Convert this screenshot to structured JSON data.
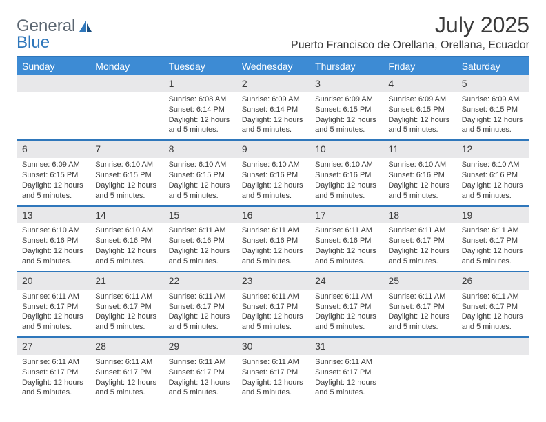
{
  "brand": {
    "part1": "General",
    "part2": "Blue"
  },
  "title": "July 2025",
  "location": "Puerto Francisco de Orellana, Orellana, Ecuador",
  "colors": {
    "header_bg": "#3d8bd4",
    "header_text": "#ffffff",
    "divider": "#2f77bb",
    "daynum_bg": "#e8e8ea",
    "text": "#3a3a3a",
    "logo_gray": "#5a6570",
    "logo_blue": "#2f77bb",
    "page_bg": "#ffffff"
  },
  "typography": {
    "title_fontsize": 32,
    "location_fontsize": 16,
    "header_fontsize": 14,
    "daynum_fontsize": 14,
    "body_fontsize": 11
  },
  "days": [
    "Sunday",
    "Monday",
    "Tuesday",
    "Wednesday",
    "Thursday",
    "Friday",
    "Saturday"
  ],
  "weeks": [
    [
      null,
      null,
      {
        "n": "1",
        "sr": "Sunrise: 6:08 AM",
        "ss": "Sunset: 6:14 PM",
        "dl": "Daylight: 12 hours and 5 minutes."
      },
      {
        "n": "2",
        "sr": "Sunrise: 6:09 AM",
        "ss": "Sunset: 6:14 PM",
        "dl": "Daylight: 12 hours and 5 minutes."
      },
      {
        "n": "3",
        "sr": "Sunrise: 6:09 AM",
        "ss": "Sunset: 6:15 PM",
        "dl": "Daylight: 12 hours and 5 minutes."
      },
      {
        "n": "4",
        "sr": "Sunrise: 6:09 AM",
        "ss": "Sunset: 6:15 PM",
        "dl": "Daylight: 12 hours and 5 minutes."
      },
      {
        "n": "5",
        "sr": "Sunrise: 6:09 AM",
        "ss": "Sunset: 6:15 PM",
        "dl": "Daylight: 12 hours and 5 minutes."
      }
    ],
    [
      {
        "n": "6",
        "sr": "Sunrise: 6:09 AM",
        "ss": "Sunset: 6:15 PM",
        "dl": "Daylight: 12 hours and 5 minutes."
      },
      {
        "n": "7",
        "sr": "Sunrise: 6:10 AM",
        "ss": "Sunset: 6:15 PM",
        "dl": "Daylight: 12 hours and 5 minutes."
      },
      {
        "n": "8",
        "sr": "Sunrise: 6:10 AM",
        "ss": "Sunset: 6:15 PM",
        "dl": "Daylight: 12 hours and 5 minutes."
      },
      {
        "n": "9",
        "sr": "Sunrise: 6:10 AM",
        "ss": "Sunset: 6:16 PM",
        "dl": "Daylight: 12 hours and 5 minutes."
      },
      {
        "n": "10",
        "sr": "Sunrise: 6:10 AM",
        "ss": "Sunset: 6:16 PM",
        "dl": "Daylight: 12 hours and 5 minutes."
      },
      {
        "n": "11",
        "sr": "Sunrise: 6:10 AM",
        "ss": "Sunset: 6:16 PM",
        "dl": "Daylight: 12 hours and 5 minutes."
      },
      {
        "n": "12",
        "sr": "Sunrise: 6:10 AM",
        "ss": "Sunset: 6:16 PM",
        "dl": "Daylight: 12 hours and 5 minutes."
      }
    ],
    [
      {
        "n": "13",
        "sr": "Sunrise: 6:10 AM",
        "ss": "Sunset: 6:16 PM",
        "dl": "Daylight: 12 hours and 5 minutes."
      },
      {
        "n": "14",
        "sr": "Sunrise: 6:10 AM",
        "ss": "Sunset: 6:16 PM",
        "dl": "Daylight: 12 hours and 5 minutes."
      },
      {
        "n": "15",
        "sr": "Sunrise: 6:11 AM",
        "ss": "Sunset: 6:16 PM",
        "dl": "Daylight: 12 hours and 5 minutes."
      },
      {
        "n": "16",
        "sr": "Sunrise: 6:11 AM",
        "ss": "Sunset: 6:16 PM",
        "dl": "Daylight: 12 hours and 5 minutes."
      },
      {
        "n": "17",
        "sr": "Sunrise: 6:11 AM",
        "ss": "Sunset: 6:16 PM",
        "dl": "Daylight: 12 hours and 5 minutes."
      },
      {
        "n": "18",
        "sr": "Sunrise: 6:11 AM",
        "ss": "Sunset: 6:17 PM",
        "dl": "Daylight: 12 hours and 5 minutes."
      },
      {
        "n": "19",
        "sr": "Sunrise: 6:11 AM",
        "ss": "Sunset: 6:17 PM",
        "dl": "Daylight: 12 hours and 5 minutes."
      }
    ],
    [
      {
        "n": "20",
        "sr": "Sunrise: 6:11 AM",
        "ss": "Sunset: 6:17 PM",
        "dl": "Daylight: 12 hours and 5 minutes."
      },
      {
        "n": "21",
        "sr": "Sunrise: 6:11 AM",
        "ss": "Sunset: 6:17 PM",
        "dl": "Daylight: 12 hours and 5 minutes."
      },
      {
        "n": "22",
        "sr": "Sunrise: 6:11 AM",
        "ss": "Sunset: 6:17 PM",
        "dl": "Daylight: 12 hours and 5 minutes."
      },
      {
        "n": "23",
        "sr": "Sunrise: 6:11 AM",
        "ss": "Sunset: 6:17 PM",
        "dl": "Daylight: 12 hours and 5 minutes."
      },
      {
        "n": "24",
        "sr": "Sunrise: 6:11 AM",
        "ss": "Sunset: 6:17 PM",
        "dl": "Daylight: 12 hours and 5 minutes."
      },
      {
        "n": "25",
        "sr": "Sunrise: 6:11 AM",
        "ss": "Sunset: 6:17 PM",
        "dl": "Daylight: 12 hours and 5 minutes."
      },
      {
        "n": "26",
        "sr": "Sunrise: 6:11 AM",
        "ss": "Sunset: 6:17 PM",
        "dl": "Daylight: 12 hours and 5 minutes."
      }
    ],
    [
      {
        "n": "27",
        "sr": "Sunrise: 6:11 AM",
        "ss": "Sunset: 6:17 PM",
        "dl": "Daylight: 12 hours and 5 minutes."
      },
      {
        "n": "28",
        "sr": "Sunrise: 6:11 AM",
        "ss": "Sunset: 6:17 PM",
        "dl": "Daylight: 12 hours and 5 minutes."
      },
      {
        "n": "29",
        "sr": "Sunrise: 6:11 AM",
        "ss": "Sunset: 6:17 PM",
        "dl": "Daylight: 12 hours and 5 minutes."
      },
      {
        "n": "30",
        "sr": "Sunrise: 6:11 AM",
        "ss": "Sunset: 6:17 PM",
        "dl": "Daylight: 12 hours and 5 minutes."
      },
      {
        "n": "31",
        "sr": "Sunrise: 6:11 AM",
        "ss": "Sunset: 6:17 PM",
        "dl": "Daylight: 12 hours and 5 minutes."
      },
      null,
      null
    ]
  ]
}
